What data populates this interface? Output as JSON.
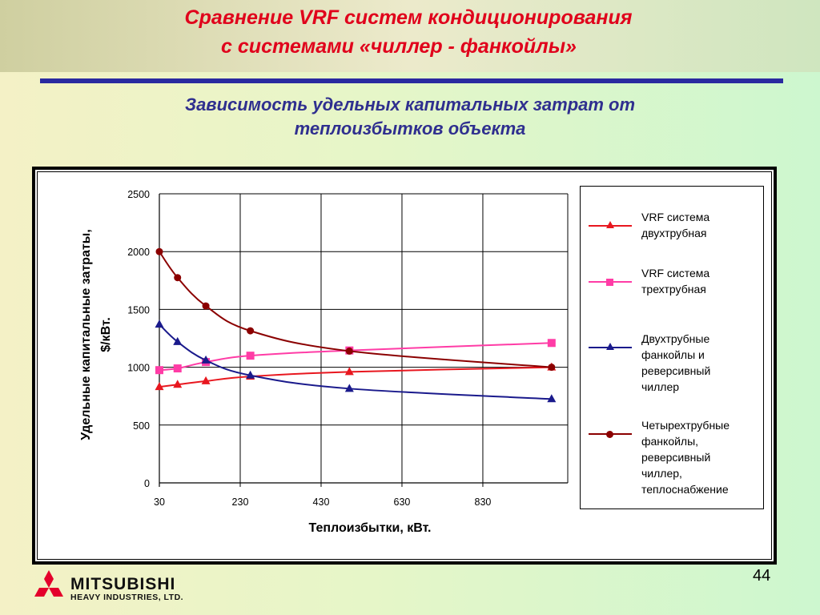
{
  "header": {
    "title_line1": "Сравнение VRF систем кондиционирования",
    "title_line2": "с системами «чиллер - фанкойлы»"
  },
  "subtitle": {
    "line1": "Зависимость удельных капитальных затрат от",
    "line2": "теплоизбытков объекта"
  },
  "chart_data": {
    "type": "line",
    "xlabel": "Теплоизбытки, кВт.",
    "ylabel_line1": "Удельные капитальные затраты,",
    "ylabel_line2": "$/кВт.",
    "x_ticks": [
      30,
      230,
      430,
      630,
      830
    ],
    "y_ticks": [
      0,
      500,
      1000,
      1500,
      2000,
      2500
    ],
    "xlim": [
      30,
      1040
    ],
    "ylim": [
      0,
      2500
    ],
    "grid": true,
    "legend_position": "right",
    "series": [
      {
        "name": "VRF система двухтрубная",
        "color": "#e8171f",
        "marker": "triangle",
        "points": [
          [
            30,
            830
          ],
          [
            75,
            850
          ],
          [
            145,
            880
          ],
          [
            255,
            920
          ],
          [
            500,
            960
          ],
          [
            1000,
            1000
          ]
        ]
      },
      {
        "name": "VRF система трехтрубная",
        "color": "#ff3ca6",
        "marker": "square",
        "points": [
          [
            30,
            975
          ],
          [
            75,
            990
          ],
          [
            145,
            1045
          ],
          [
            255,
            1100
          ],
          [
            500,
            1145
          ],
          [
            1000,
            1210
          ]
        ]
      },
      {
        "name": "Двухтрубные фанкойлы и реверсивный чиллер",
        "color": "#1a1a8c",
        "marker": "triangle",
        "points": [
          [
            30,
            1370
          ],
          [
            75,
            1220
          ],
          [
            145,
            1060
          ],
          [
            255,
            930
          ],
          [
            500,
            815
          ],
          [
            1000,
            725
          ]
        ]
      },
      {
        "name": "Четырехтрубные фанкойлы, реверсивный чиллер, теплоснабжение",
        "color": "#8b0000",
        "marker": "circle",
        "points": [
          [
            30,
            2000
          ],
          [
            75,
            1775
          ],
          [
            145,
            1530
          ],
          [
            255,
            1315
          ],
          [
            500,
            1140
          ],
          [
            1000,
            1000
          ]
        ]
      }
    ]
  },
  "legend": {
    "items": [
      {
        "lines": [
          "VRF система",
          "двухтрубная"
        ],
        "color": "#e8171f",
        "marker": "triangle"
      },
      {
        "lines": [
          "VRF система",
          "трехтрубная"
        ],
        "color": "#ff3ca6",
        "marker": "square"
      },
      {
        "lines": [
          "Двухтрубные",
          "фанкойлы и",
          "реверсивный",
          "чиллер"
        ],
        "color": "#1a1a8c",
        "marker": "triangle"
      },
      {
        "lines": [
          "Четырехтрубные",
          "фанкойлы,",
          "реверсивный",
          "чиллер,",
          "теплоснабжение"
        ],
        "color": "#8b0000",
        "marker": "circle"
      }
    ]
  },
  "footer": {
    "page_number": "44",
    "logo_line1": "MITSUBISHI",
    "logo_line2": "HEAVY INDUSTRIES, LTD."
  }
}
